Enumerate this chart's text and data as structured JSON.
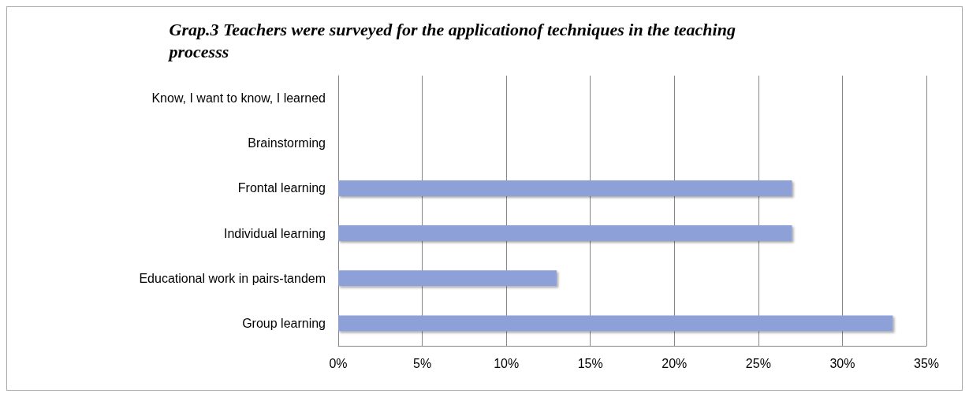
{
  "chart_data": {
    "type": "bar",
    "orientation": "horizontal",
    "title": "Grap.3 Teachers were surveyed for the applicationof techniques in the teaching processs",
    "categories": [
      "Know, I want to know, I learned",
      "Brainstorming",
      "Frontal learning",
      "Individual learning",
      "Educational work in pairs-tandem",
      "Group learning"
    ],
    "values": [
      0,
      0,
      27,
      27,
      13,
      33
    ],
    "color": "#8ea0d8",
    "xlim": [
      0,
      35
    ],
    "xticks": [
      {
        "value": 0,
        "label": "0%"
      },
      {
        "value": 5,
        "label": "5%"
      },
      {
        "value": 10,
        "label": "10%"
      },
      {
        "value": 15,
        "label": "15%"
      },
      {
        "value": 20,
        "label": "20%"
      },
      {
        "value": 25,
        "label": "25%"
      },
      {
        "value": 30,
        "label": "30%"
      },
      {
        "value": 35,
        "label": "35%"
      }
    ],
    "grid": "x"
  }
}
